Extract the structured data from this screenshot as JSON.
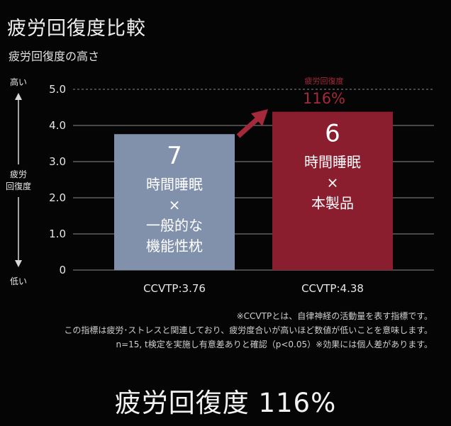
{
  "title": "疲労回復度比較",
  "subtitle": "疲労回復度の高さ",
  "colors": {
    "bar1": "#8191ab",
    "bar2": "#8a1d2e",
    "accent": "#a4293a",
    "grid": "#8a8a8a",
    "axis": "#d8d8d8"
  },
  "chart_data": {
    "type": "bar",
    "title": "疲労回復度比較",
    "ylabel": "疲労回復度",
    "ylabel_top": "高い",
    "ylabel_bottom": "低い",
    "ylim": [
      0,
      5
    ],
    "yticks": [
      "0",
      "1.0",
      "2.0",
      "3.0",
      "4.0",
      "5.0"
    ],
    "grid": true,
    "categories": [
      "CCVTP:3.76",
      "CCVTP:4.38"
    ],
    "values": [
      3.76,
      4.38
    ],
    "bars": [
      {
        "number": "7",
        "lines": [
          "時間睡眠",
          "×",
          "一般的な",
          "機能性枕"
        ]
      },
      {
        "number": "6",
        "lines": [
          "時間睡眠",
          "×",
          "本製品"
        ]
      }
    ],
    "annotation": {
      "label": "疲労回復度",
      "value": "116%"
    }
  },
  "footnotes": [
    "※CCVTPとは、自律神経の活動量を表す指標です。",
    "この指標は疲労･ストレスと関連しており、疲労度合いが高いほど数値が低いことを意味します。",
    "n=15, t検定を実施し有意差ありと確認（p<0.05）※効果には個人差があります。"
  ],
  "bottom_title": "疲労回復度 116%"
}
